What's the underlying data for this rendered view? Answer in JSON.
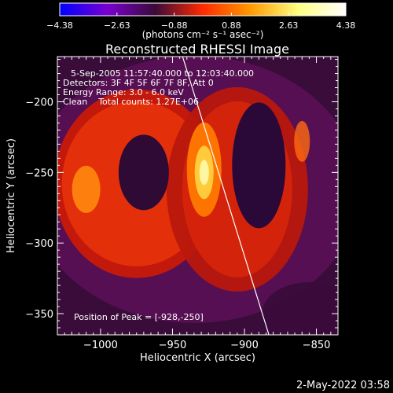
{
  "chart_data": {
    "type": "heatmap",
    "title": "Reconstructed RHESSI Image",
    "xlabel": "Heliocentric X (arcsec)",
    "ylabel": "Heliocentric Y (arcsec)",
    "xlim": [
      -1030,
      -835
    ],
    "ylim": [
      -365,
      -168
    ],
    "x_ticks": [
      -1000,
      -950,
      -900,
      -850
    ],
    "y_ticks": [
      -350,
      -300,
      -250,
      -200
    ],
    "x_tick_labels": [
      "−1000",
      "−950",
      "−900",
      "−850"
    ],
    "y_tick_labels": [
      "−350",
      "−300",
      "−250",
      "−200"
    ],
    "colorbar": {
      "min": -4.38,
      "max": 4.38,
      "tick_labels": [
        "−4.38",
        "−2.63",
        "−0.88",
        "0.88",
        "2.63",
        "4.38"
      ],
      "colormap": [
        "#0000ff",
        "#7a00d0",
        "#3a0a3a",
        "#ff2a00",
        "#ff9a00",
        "#ffff80",
        "#ffffff"
      ]
    },
    "units_label": "(photons cm⁻² s⁻¹ asec⁻²)",
    "info_lines": [
      "5-Sep-2005 11:57:40.000 to 12:03:40.000",
      "Detectors: 3F 4F 5F 6F 7F 8F, Att 0",
      "Energy Range: 3.0 - 6.0 keV",
      "Clean    Total counts: 1.27E+06"
    ],
    "peak_text": "Position of Peak = [-928,-250]",
    "peak_position": [
      -928,
      -250
    ],
    "limb_line": [
      [
        -943,
        -168
      ],
      [
        -883,
        -365
      ]
    ]
  },
  "footer": {
    "date": "2-May-2022 03:58"
  }
}
